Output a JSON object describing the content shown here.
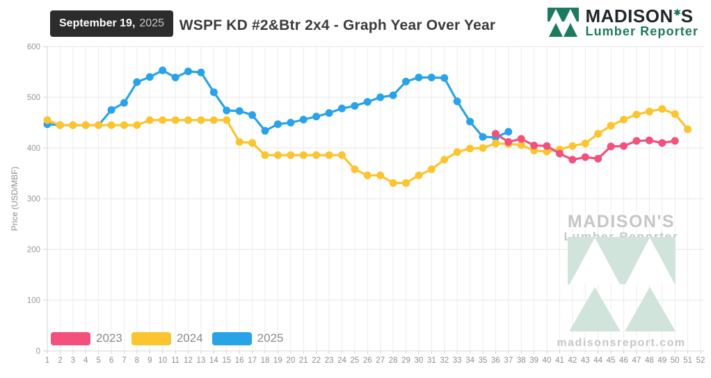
{
  "header": {
    "date_badge": {
      "date_bold": "September 19,",
      "year": "2025"
    },
    "logo": {
      "name": "MADISON'S",
      "name_pre": "MADISON",
      "name_post": "S",
      "tagline": "Lumber Reporter",
      "green": "#1C7A5E",
      "dark": "#21262a"
    }
  },
  "watermark": {
    "brand": "MADISON'S",
    "tagline": "Lumber Reporter",
    "url": "madisonsreport.com",
    "pale_green": "#d0e4db",
    "gray": "#c6c6c6"
  },
  "chart_data": {
    "type": "line",
    "title": "WSPF KD #2&Btr 2x4 - Graph Year Over Year",
    "xlabel": "",
    "ylabel": "Price (USD/MBF)",
    "x_unit": "week",
    "xlim": [
      1,
      52
    ],
    "ylim": [
      0,
      600
    ],
    "yticks": [
      0,
      100,
      200,
      300,
      400,
      500,
      600
    ],
    "xticks": [
      1,
      2,
      3,
      4,
      5,
      6,
      7,
      8,
      9,
      10,
      11,
      12,
      13,
      14,
      15,
      16,
      17,
      18,
      19,
      20,
      21,
      22,
      23,
      24,
      25,
      26,
      27,
      28,
      29,
      30,
      31,
      32,
      33,
      34,
      35,
      36,
      37,
      38,
      39,
      40,
      41,
      42,
      43,
      44,
      45,
      46,
      47,
      48,
      49,
      50,
      51,
      52
    ],
    "grid": true,
    "legend_position": "bottom-left",
    "marker": "circle",
    "series": [
      {
        "name": "2023",
        "color": "#F1517C",
        "start_week": 36,
        "values": [
          428,
          412,
          418,
          405,
          404,
          389,
          377,
          382,
          379,
          403,
          404,
          414,
          415,
          410,
          414
        ]
      },
      {
        "name": "2024",
        "color": "#FCC42F",
        "start_week": 1,
        "values": [
          455,
          445,
          445,
          445,
          445,
          445,
          445,
          445,
          455,
          455,
          455,
          455,
          455,
          455,
          455,
          412,
          410,
          386,
          386,
          386,
          386,
          386,
          386,
          386,
          358,
          346,
          346,
          331,
          331,
          346,
          358,
          377,
          392,
          399,
          400,
          409,
          408,
          406,
          395,
          393,
          397,
          404,
          409,
          428,
          444,
          456,
          466,
          472,
          477,
          467,
          437
        ]
      },
      {
        "name": "2025",
        "color": "#29A3E8",
        "start_week": 1,
        "values": [
          447,
          445,
          445,
          445,
          445,
          475,
          489,
          530,
          540,
          553,
          539,
          551,
          549,
          510,
          474,
          473,
          465,
          434,
          447,
          450,
          456,
          462,
          469,
          478,
          483,
          491,
          500,
          504,
          531,
          539,
          539,
          538,
          492,
          452,
          422,
          421,
          432
        ]
      }
    ]
  }
}
